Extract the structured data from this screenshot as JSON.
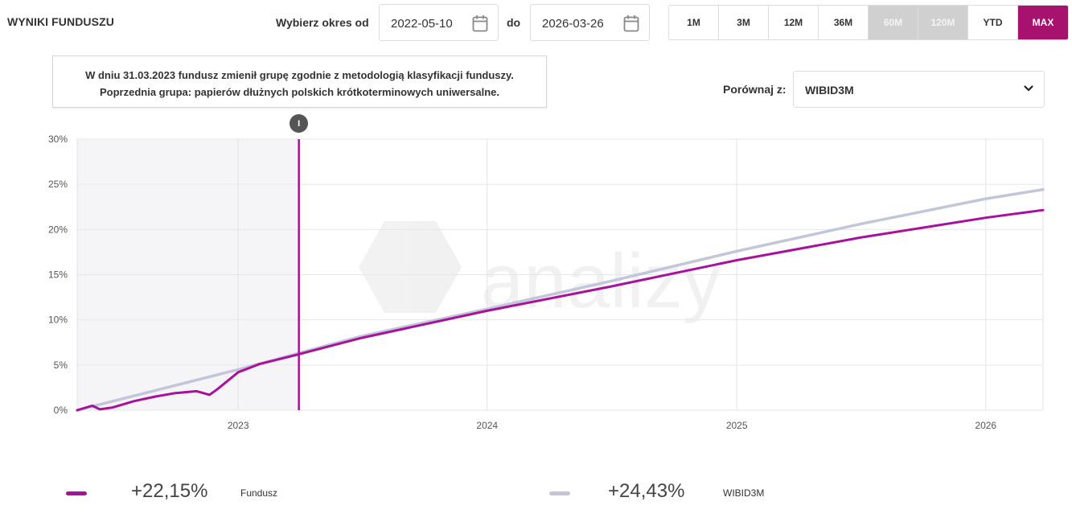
{
  "header": {
    "title": "WYNIKI FUNDUSZU",
    "period_label": "Wybierz okres od",
    "date_from": "2022-05-10",
    "to_label": "do",
    "date_to": "2026-03-26"
  },
  "ranges": [
    {
      "label": "1M",
      "state": "normal"
    },
    {
      "label": "3M",
      "state": "normal"
    },
    {
      "label": "12M",
      "state": "normal"
    },
    {
      "label": "36M",
      "state": "normal"
    },
    {
      "label": "60M",
      "state": "disabled"
    },
    {
      "label": "120M",
      "state": "disabled"
    },
    {
      "label": "YTD",
      "state": "normal"
    },
    {
      "label": "MAX",
      "state": "active"
    }
  ],
  "tooltip": {
    "line1": "W dniu 31.03.2023 fundusz zmienił grupę zgodnie z metodologią klasyfikacji funduszy.",
    "line2": "Poprzednia grupa: papierów dłużnych polskich krótkoterminowych uniwersalne."
  },
  "compare": {
    "label": "Porównaj z:",
    "value": "WIBID3M"
  },
  "marker_label": "I",
  "colors": {
    "fund": "#a8129a",
    "benchmark": "#c2c6d8",
    "accent": "#a8126f",
    "shaded": "#f5f5f7"
  },
  "chart_data": {
    "type": "line",
    "y_ticks": [
      "0%",
      "5%",
      "10%",
      "15%",
      "20%",
      "25%",
      "30%"
    ],
    "ylim": [
      0,
      30
    ],
    "xlim": [
      "2022-05-10",
      "2026-03-26"
    ],
    "x_ticks": [
      {
        "label": "2023",
        "date": "2023-01-01"
      },
      {
        "label": "2024",
        "date": "2024-01-01"
      },
      {
        "label": "2025",
        "date": "2025-01-01"
      },
      {
        "label": "2026",
        "date": "2026-01-01"
      }
    ],
    "shaded_range": [
      "2022-05-10",
      "2023-03-31"
    ],
    "event_date": "2023-03-31",
    "series": [
      {
        "name": "Fundusz",
        "total": "+22,15%",
        "points": [
          [
            "2022-05-10",
            0.0
          ],
          [
            "2022-06-01",
            0.5
          ],
          [
            "2022-06-12",
            0.1
          ],
          [
            "2022-07-01",
            0.3
          ],
          [
            "2022-08-01",
            1.0
          ],
          [
            "2022-09-01",
            1.5
          ],
          [
            "2022-10-01",
            1.9
          ],
          [
            "2022-11-01",
            2.1
          ],
          [
            "2022-11-20",
            1.7
          ],
          [
            "2022-12-01",
            2.3
          ],
          [
            "2023-01-01",
            4.2
          ],
          [
            "2023-02-01",
            5.1
          ],
          [
            "2023-03-31",
            6.2
          ],
          [
            "2023-07-01",
            8.0
          ],
          [
            "2024-01-01",
            11.0
          ],
          [
            "2024-07-01",
            13.7
          ],
          [
            "2025-01-01",
            16.6
          ],
          [
            "2025-07-01",
            19.1
          ],
          [
            "2026-01-01",
            21.3
          ],
          [
            "2026-03-26",
            22.15
          ]
        ]
      },
      {
        "name": "WIBID3M",
        "total": "+24,43%",
        "points": [
          [
            "2022-05-10",
            0.0
          ],
          [
            "2023-01-01",
            4.5
          ],
          [
            "2023-07-01",
            8.2
          ],
          [
            "2024-01-01",
            11.2
          ],
          [
            "2024-07-01",
            14.3
          ],
          [
            "2025-01-01",
            17.6
          ],
          [
            "2025-07-01",
            20.6
          ],
          [
            "2026-01-01",
            23.4
          ],
          [
            "2026-03-26",
            24.43
          ]
        ]
      }
    ]
  }
}
